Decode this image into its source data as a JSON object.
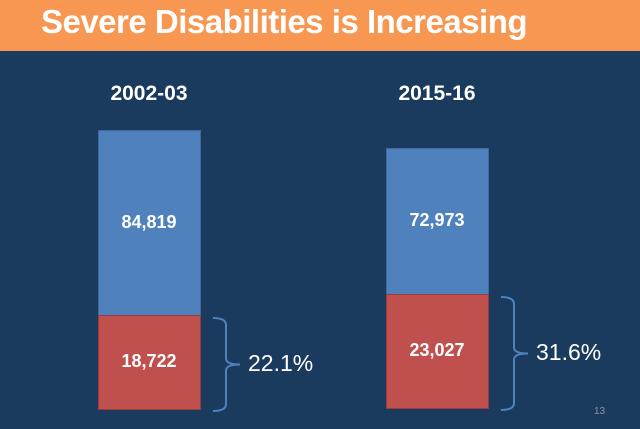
{
  "slide": {
    "title": "Severe Disabilities is Increasing",
    "page_number": "13"
  },
  "chart_data": {
    "type": "bar",
    "stacked": true,
    "title": "",
    "categories": [
      "2002-03",
      "2015-16"
    ],
    "series": [
      {
        "values": [
          18722,
          23027
        ],
        "labels": [
          "18,722",
          "23,027"
        ],
        "color": "#c0504d"
      },
      {
        "values": [
          84819,
          72973
        ],
        "labels": [
          "84,819",
          "72,973"
        ],
        "color": "#4f81bd"
      }
    ],
    "annotations": [
      "22.1%",
      "31.6%"
    ],
    "grid": false,
    "legend": "none"
  }
}
